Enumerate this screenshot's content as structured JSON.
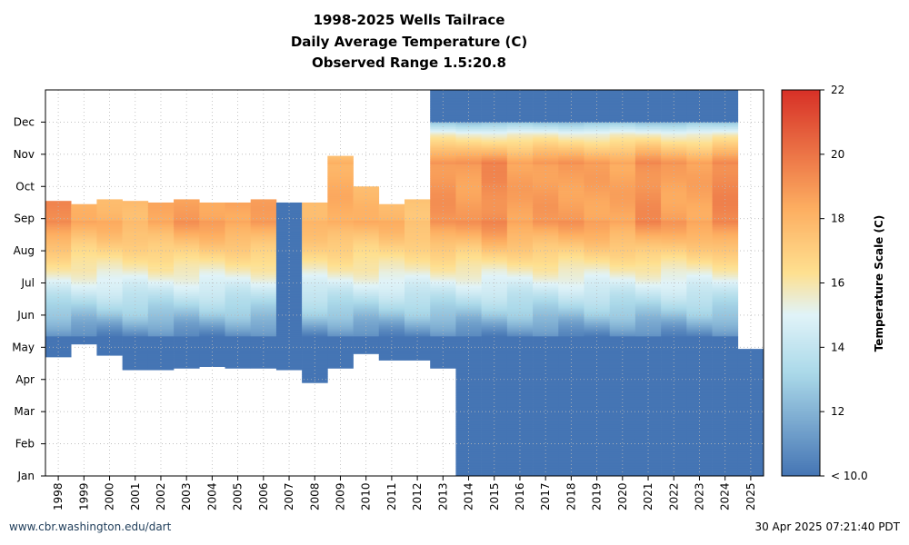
{
  "title_lines": [
    "1998-2025 Wells Tailrace",
    "Daily Average Temperature (C)",
    "Observed Range 1.5:20.8"
  ],
  "footer": {
    "left": "www.cbr.washington.edu/dart",
    "right": "30 Apr 2025 07:21:40 PDT"
  },
  "chart_data": {
    "type": "heatmap",
    "title": "1998-2025 Wells Tailrace",
    "subtitle": "Daily Average Temperature (C) / Observed Range 1.5:20.8",
    "x_categories": [
      "1998",
      "1999",
      "2000",
      "2001",
      "2002",
      "2003",
      "2004",
      "2005",
      "2006",
      "2007",
      "2008",
      "2009",
      "2010",
      "2011",
      "2012",
      "2013",
      "2014",
      "2015",
      "2016",
      "2017",
      "2018",
      "2019",
      "2020",
      "2021",
      "2022",
      "2023",
      "2024",
      "2025"
    ],
    "y_months": [
      "Jan",
      "Feb",
      "Mar",
      "Apr",
      "May",
      "Jun",
      "Jul",
      "Aug",
      "Sep",
      "Oct",
      "Nov",
      "Dec"
    ],
    "y_range_months": [
      0,
      12
    ],
    "colorbar": {
      "label": "Temperature Scale (C)",
      "min": 10,
      "max": 22,
      "ticks": [
        10,
        12,
        14,
        16,
        18,
        20,
        22
      ],
      "tick_labels": [
        "< 10.0",
        "12",
        "14",
        "16",
        "18",
        "20",
        "22"
      ],
      "colors": [
        "#4575b4",
        "#abd9e9",
        "#e0f3f8",
        "#fee090",
        "#fdae61",
        "#d73027"
      ]
    },
    "grid": true,
    "years": [
      {
        "year": "1998",
        "start_month": 3.7,
        "end_month": 8.55,
        "peak": 19.6
      },
      {
        "year": "1999",
        "start_month": 4.1,
        "end_month": 8.45,
        "peak": 18.3
      },
      {
        "year": "2000",
        "start_month": 3.75,
        "end_month": 8.6,
        "peak": 18.3
      },
      {
        "year": "2001",
        "start_month": 3.3,
        "end_month": 8.55,
        "peak": 18.1
      },
      {
        "year": "2002",
        "start_month": 3.3,
        "end_month": 8.5,
        "peak": 18.6
      },
      {
        "year": "2003",
        "start_month": 3.35,
        "end_month": 8.6,
        "peak": 19.0
      },
      {
        "year": "2004",
        "start_month": 3.4,
        "end_month": 8.5,
        "peak": 18.9
      },
      {
        "year": "2005",
        "start_month": 3.35,
        "end_month": 8.5,
        "peak": 18.8
      },
      {
        "year": "2006",
        "start_month": 3.35,
        "end_month": 8.6,
        "peak": 18.9
      },
      {
        "year": "2007",
        "start_month": 3.3,
        "end_month": 8.5,
        "peak": 10.0
      },
      {
        "year": "2008",
        "start_month": 2.9,
        "end_month": 8.5,
        "peak": 18.2
      },
      {
        "year": "2009",
        "start_month": 3.35,
        "end_month": 9.95,
        "peak": 18.5
      },
      {
        "year": "2010",
        "start_month": 3.8,
        "end_month": 9.0,
        "peak": 18.2
      },
      {
        "year": "2011",
        "start_month": 3.6,
        "end_month": 8.45,
        "peak": 18.2
      },
      {
        "year": "2012",
        "start_month": 3.6,
        "end_month": 8.6,
        "peak": 17.8
      },
      {
        "year": "2013",
        "start_month": 3.35,
        "end_month": 12.0,
        "peak": 19.3
      },
      {
        "year": "2014",
        "start_month": 0.0,
        "end_month": 12.0,
        "peak": 19.0
      },
      {
        "year": "2015",
        "start_month": 0.0,
        "end_month": 12.0,
        "peak": 19.6
      },
      {
        "year": "2016",
        "start_month": 0.0,
        "end_month": 12.0,
        "peak": 18.9
      },
      {
        "year": "2017",
        "start_month": 0.0,
        "end_month": 12.0,
        "peak": 19.1
      },
      {
        "year": "2018",
        "start_month": 0.0,
        "end_month": 12.0,
        "peak": 19.0
      },
      {
        "year": "2019",
        "start_month": 0.0,
        "end_month": 12.0,
        "peak": 18.9
      },
      {
        "year": "2020",
        "start_month": 0.0,
        "end_month": 12.0,
        "peak": 18.8
      },
      {
        "year": "2021",
        "start_month": 0.0,
        "end_month": 12.0,
        "peak": 19.5
      },
      {
        "year": "2022",
        "start_month": 0.0,
        "end_month": 12.0,
        "peak": 18.9
      },
      {
        "year": "2023",
        "start_month": 0.0,
        "end_month": 12.0,
        "peak": 18.8
      },
      {
        "year": "2024",
        "start_month": 0.0,
        "end_month": 12.0,
        "peak": 19.7
      },
      {
        "year": "2025",
        "start_month": 0.0,
        "end_month": 3.95,
        "peak": 10.0
      }
    ]
  }
}
